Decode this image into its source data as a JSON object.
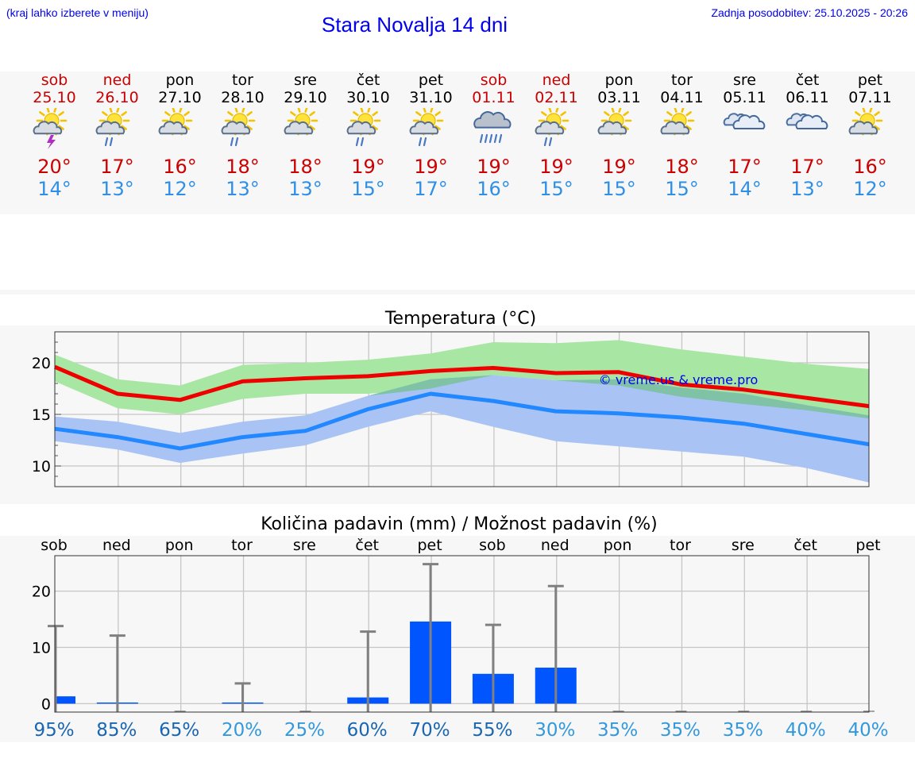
{
  "header": {
    "hint": "(kraj lahko izberete v meniju)",
    "title": "Stara Novalja 14 dni",
    "updated": "Zadnja posodobitev: 25.10.2025 - 20:26"
  },
  "days": [
    {
      "name": "sob",
      "date": "25.10",
      "weekend": true,
      "icon": "sun-cloud-thunder-icon",
      "max": "20°",
      "min": "14°"
    },
    {
      "name": "ned",
      "date": "26.10",
      "weekend": true,
      "icon": "sun-cloud-rain-icon",
      "max": "17°",
      "min": "13°"
    },
    {
      "name": "pon",
      "date": "27.10",
      "weekend": false,
      "icon": "sun-cloud-icon",
      "max": "16°",
      "min": "12°"
    },
    {
      "name": "tor",
      "date": "28.10",
      "weekend": false,
      "icon": "sun-cloud-rain-icon",
      "max": "18°",
      "min": "13°"
    },
    {
      "name": "sre",
      "date": "29.10",
      "weekend": false,
      "icon": "sun-cloud-icon",
      "max": "18°",
      "min": "13°"
    },
    {
      "name": "čet",
      "date": "30.10",
      "weekend": false,
      "icon": "sun-cloud-rain-icon",
      "max": "19°",
      "min": "15°"
    },
    {
      "name": "pet",
      "date": "31.10",
      "weekend": false,
      "icon": "sun-cloud-rain-icon",
      "max": "19°",
      "min": "17°"
    },
    {
      "name": "sob",
      "date": "01.11",
      "weekend": true,
      "icon": "cloud-heavy-rain-icon",
      "max": "19°",
      "min": "16°"
    },
    {
      "name": "ned",
      "date": "02.11",
      "weekend": true,
      "icon": "sun-cloud-rain-icon",
      "max": "19°",
      "min": "15°"
    },
    {
      "name": "pon",
      "date": "03.11",
      "weekend": false,
      "icon": "sun-cloud-icon",
      "max": "19°",
      "min": "15°"
    },
    {
      "name": "tor",
      "date": "04.11",
      "weekend": false,
      "icon": "sun-cloud-icon",
      "max": "18°",
      "min": "15°"
    },
    {
      "name": "sre",
      "date": "05.11",
      "weekend": false,
      "icon": "cloud-icon",
      "max": "17°",
      "min": "14°"
    },
    {
      "name": "čet",
      "date": "06.11",
      "weekend": false,
      "icon": "cloud-icon",
      "max": "17°",
      "min": "13°"
    },
    {
      "name": "pet",
      "date": "07.11",
      "weekend": false,
      "icon": "sun-cloud-icon",
      "max": "16°",
      "min": "12°"
    }
  ],
  "colors": {
    "link": "#0000ee",
    "weekend": "#cc0000",
    "max_temp": "#cc0000",
    "min_temp": "#2f8fe6",
    "max_line": "#ee0000",
    "min_line": "#2288ff",
    "max_band": "#a8e6a3",
    "min_band": "#a9c3f5",
    "overlap_band": "#7fc2a6",
    "rain_bar": "#0055ff",
    "error_bar": "#808080",
    "prob_high": "#1a66b3",
    "prob_low": "#3399dd"
  },
  "chart_data": [
    {
      "type": "line",
      "title": "Temperatura (°C)",
      "watermark": "© vreme.us & vreme.pro",
      "x": [
        "25.10",
        "26.10",
        "27.10",
        "28.10",
        "29.10",
        "30.10",
        "31.10",
        "01.11",
        "02.11",
        "03.11",
        "04.11",
        "05.11",
        "06.11",
        "07.11"
      ],
      "ylim": [
        8,
        23
      ],
      "yticks": [
        10,
        15,
        20
      ],
      "grid": true,
      "series": [
        {
          "role": "max",
          "values": [
            19.6,
            17.0,
            16.4,
            18.2,
            18.5,
            18.7,
            19.2,
            19.5,
            19.0,
            19.1,
            17.9,
            17.4,
            16.6,
            15.8
          ],
          "band_low": [
            18.2,
            15.6,
            15.0,
            16.5,
            17.0,
            17.0,
            17.5,
            18.8,
            18.3,
            17.8,
            16.7,
            16.0,
            15.4,
            14.6
          ],
          "band_high": [
            20.8,
            18.4,
            17.8,
            19.8,
            20.0,
            20.3,
            20.9,
            22.0,
            21.9,
            22.2,
            21.3,
            20.6,
            19.9,
            19.4
          ]
        },
        {
          "role": "min",
          "values": [
            13.6,
            12.8,
            11.7,
            12.8,
            13.4,
            15.5,
            17.0,
            16.3,
            15.3,
            15.1,
            14.7,
            14.1,
            13.1,
            12.1
          ],
          "band_low": [
            12.4,
            11.6,
            10.3,
            11.2,
            12.0,
            13.8,
            15.3,
            13.8,
            12.4,
            11.9,
            11.4,
            10.9,
            9.8,
            8.4
          ],
          "band_high": [
            14.8,
            14.3,
            13.2,
            14.3,
            14.9,
            16.8,
            18.4,
            18.8,
            18.3,
            18.4,
            17.6,
            17.0,
            15.9,
            14.9
          ]
        }
      ]
    },
    {
      "type": "bar",
      "title": "Količina padavin (mm) / Možnost padavin (%)",
      "categories": [
        "sob",
        "ned",
        "pon",
        "tor",
        "sre",
        "čet",
        "pet",
        "sob",
        "ned",
        "pon",
        "tor",
        "sre",
        "čet",
        "pet"
      ],
      "values": [
        1.3,
        0.2,
        0,
        0.2,
        0,
        1.1,
        14.6,
        5.3,
        6.4,
        0,
        0,
        0,
        0,
        0
      ],
      "error_high": [
        13.8,
        12.1,
        0,
        3.6,
        0,
        12.8,
        24.8,
        14.0,
        20.9,
        0,
        0,
        0,
        0,
        0
      ],
      "probability": [
        "95%",
        "85%",
        "65%",
        "20%",
        "25%",
        "60%",
        "70%",
        "55%",
        "30%",
        "35%",
        "35%",
        "35%",
        "40%",
        "40%"
      ],
      "ylim": [
        -1.5,
        26.3
      ],
      "yticks": [
        0,
        10,
        20
      ],
      "grid": true
    }
  ]
}
